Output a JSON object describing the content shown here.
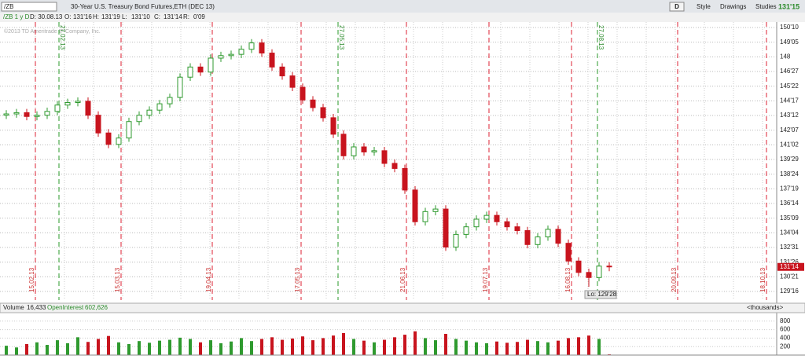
{
  "toolbar": {
    "symbol": "/ZB",
    "description": "30-Year U.S. Treasury Bond Futures,ETH (DEC 13)",
    "aggregation": "D",
    "style": "Style",
    "drawings": "Drawings",
    "studies": "Studies",
    "last": "131'15"
  },
  "info": {
    "setting": "/ZB 1 y D",
    "date": "D: 30.08.13",
    "open_label": "O:",
    "open": "131'16",
    "high_label": "H:",
    "high": "131'19",
    "low_label": "L:",
    "low": "131'10",
    "close_label": "C:",
    "close": "131'14",
    "range_label": "R:",
    "range": "0'09"
  },
  "copyright": "©2013 TD Ameritrade IP Company, Inc.",
  "date_markers": [
    "15.02.13",
    "15.03.13",
    "19.04.13",
    "17.05.13",
    "21.06.13",
    "19.07.13",
    "16.08.13",
    "20.09.13",
    "18.10.13"
  ],
  "expiry_markers": [
    "27.02.13",
    "27.05.13",
    "27.08.13"
  ],
  "price_tag": "131'14",
  "low_tag": "Lo: 129'28",
  "chart_data": {
    "type": "candlestick",
    "up_color": "#2f9a2f",
    "down_color": "#c8141e",
    "grid": true,
    "open": [
      143.4,
      143.5,
      143.6,
      143.3,
      143.4,
      143.7,
      144.2,
      144.4,
      144.5,
      143.4,
      142.0,
      141.1,
      141.6,
      142.9,
      143.4,
      143.8,
      144.3,
      144.8,
      146.4,
      147.2,
      146.8,
      147.9,
      148.1,
      148.2,
      148.6,
      149.1,
      148.3,
      147.2,
      146.5,
      145.6,
      144.6,
      144.0,
      143.2,
      141.9,
      140.2,
      140.9,
      140.5,
      140.6,
      139.6,
      139.2,
      137.5,
      135.0,
      135.8,
      136.0,
      133.0,
      134.0,
      134.6,
      135.2,
      135.5,
      135.0,
      134.6,
      134.3,
      133.2,
      133.8,
      134.4,
      133.3,
      131.9,
      131.0,
      130.6,
      131.5
    ],
    "high": [
      143.8,
      143.9,
      143.9,
      143.7,
      144.0,
      144.5,
      144.7,
      144.8,
      144.8,
      143.7,
      142.3,
      141.9,
      143.2,
      143.7,
      144.1,
      144.6,
      145.1,
      146.7,
      147.5,
      147.5,
      148.2,
      148.4,
      148.5,
      148.9,
      149.4,
      149.4,
      148.6,
      147.5,
      146.8,
      145.9,
      144.9,
      144.3,
      143.5,
      142.2,
      141.2,
      141.2,
      140.9,
      140.9,
      139.9,
      139.5,
      137.8,
      136.1,
      136.3,
      136.3,
      134.3,
      134.9,
      135.5,
      135.8,
      135.8,
      135.3,
      134.9,
      134.6,
      134.1,
      134.7,
      134.7,
      133.6,
      132.2,
      131.3,
      131.8,
      131.8
    ],
    "low": [
      143.1,
      143.2,
      143.0,
      143.0,
      143.1,
      143.4,
      143.9,
      144.1,
      143.1,
      141.7,
      140.8,
      140.8,
      141.3,
      142.6,
      143.1,
      143.5,
      144.0,
      144.5,
      146.1,
      146.5,
      146.5,
      147.6,
      147.8,
      147.9,
      148.3,
      148.0,
      146.9,
      146.2,
      145.3,
      144.3,
      143.7,
      142.9,
      141.6,
      139.9,
      139.9,
      140.2,
      140.2,
      139.3,
      138.9,
      137.2,
      134.7,
      134.7,
      135.5,
      132.7,
      132.7,
      133.7,
      134.3,
      134.9,
      134.7,
      134.3,
      134.0,
      132.9,
      132.9,
      133.5,
      133.0,
      131.6,
      130.7,
      129.875,
      130.3,
      131.1
    ],
    "close": [
      143.5,
      143.6,
      143.3,
      143.4,
      143.7,
      144.2,
      144.4,
      144.5,
      143.4,
      142.0,
      141.1,
      141.6,
      142.9,
      143.4,
      143.8,
      144.3,
      144.8,
      146.4,
      147.2,
      146.8,
      147.9,
      148.1,
      148.2,
      148.6,
      149.1,
      148.3,
      147.2,
      146.5,
      145.6,
      144.6,
      144.0,
      143.2,
      141.9,
      140.2,
      140.9,
      140.5,
      140.6,
      139.6,
      139.2,
      137.5,
      135.0,
      135.8,
      136.0,
      133.0,
      134.0,
      134.6,
      135.2,
      135.5,
      135.0,
      134.6,
      134.3,
      133.2,
      133.8,
      134.4,
      133.3,
      131.9,
      131.0,
      130.6,
      131.5,
      131.4375
    ],
    "ylim": [
      128.82,
      150.75
    ],
    "yticks": [
      {
        "value": 150.3125,
        "label": "150'10"
      },
      {
        "value": 149.15625,
        "label": "149'05"
      },
      148,
      {
        "value": 146.84375,
        "label": "146'27"
      },
      {
        "value": 145.6875,
        "label": "145'22"
      },
      {
        "value": 144.53125,
        "label": "144'17"
      },
      {
        "value": 143.375,
        "label": "143'12"
      },
      {
        "value": 142.21875,
        "label": "142'07"
      },
      {
        "value": 141.0625,
        "label": "141'02"
      },
      {
        "value": 139.90625,
        "label": "139'29"
      },
      {
        "value": 138.75,
        "label": "138'24"
      },
      {
        "value": 137.59375,
        "label": "137'19"
      },
      {
        "value": 136.4375,
        "label": "136'14"
      },
      {
        "value": 135.28125,
        "label": "135'09"
      },
      {
        "value": 134.125,
        "label": "134'04"
      },
      {
        "value": 132.96875,
        "label": "132'31"
      },
      {
        "value": 131.8125,
        "label": "131'26"
      },
      {
        "value": 130.65625,
        "label": "130'21"
      },
      {
        "value": 129.5,
        "label": "129'16"
      }
    ],
    "volume": {
      "title": "Volume",
      "last": "16,433",
      "oi_title": "OpenInterest",
      "oi_last": "602,626",
      "units": "<thousands>",
      "values": [
        220,
        180,
        260,
        300,
        240,
        350,
        280,
        420,
        310,
        380,
        450,
        300,
        260,
        330,
        290,
        340,
        360,
        410,
        380,
        300,
        350,
        280,
        320,
        400,
        330,
        380,
        420,
        360,
        390,
        440,
        350,
        400,
        460,
        520,
        380,
        340,
        300,
        360,
        420,
        480,
        560,
        400,
        350,
        500,
        380,
        340,
        300,
        280,
        320,
        290,
        310,
        360,
        330,
        300,
        340,
        400,
        420,
        460,
        380,
        16.433
      ],
      "ylim": [
        0,
        1000
      ],
      "yticks": [
        800,
        600,
        400,
        200
      ]
    }
  }
}
